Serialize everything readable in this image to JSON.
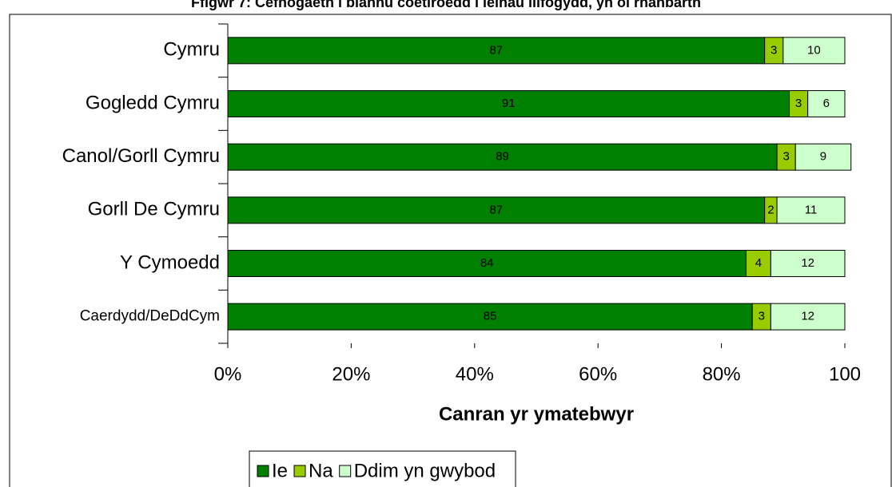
{
  "chart_data": {
    "type": "stacked-bar-horizontal",
    "title": "Ffigwr 7: Cefnogaeth i blannu coetiroedd i leihau llifogydd, yn ôl rhanbarth",
    "categories": [
      "Cymru",
      "Gogledd Cymru",
      "Canol/Gorll Cymru",
      "Gorll De Cymru",
      "Y Cymoedd",
      "Caerdydd/DeDdCym"
    ],
    "series": [
      {
        "name": "Ie",
        "color": "#008000",
        "values": [
          87,
          91,
          89,
          87,
          84,
          85
        ]
      },
      {
        "name": "Na",
        "color": "#99cc00",
        "values": [
          3,
          3,
          3,
          2,
          4,
          3
        ]
      },
      {
        "name": "Ddim yn gwybod",
        "color": "#ccffcc",
        "values": [
          10,
          6,
          9,
          11,
          12,
          12
        ]
      }
    ],
    "x_label": "Canran yr ymatebwyr",
    "xlim": [
      0,
      100
    ],
    "xticks": [
      {
        "value": 0,
        "label": "0%"
      },
      {
        "value": 20,
        "label": "20%"
      },
      {
        "value": 40,
        "label": "40%"
      },
      {
        "value": 60,
        "label": "60%"
      },
      {
        "value": 80,
        "label": "80%"
      },
      100
    ],
    "legend": "bottom"
  }
}
